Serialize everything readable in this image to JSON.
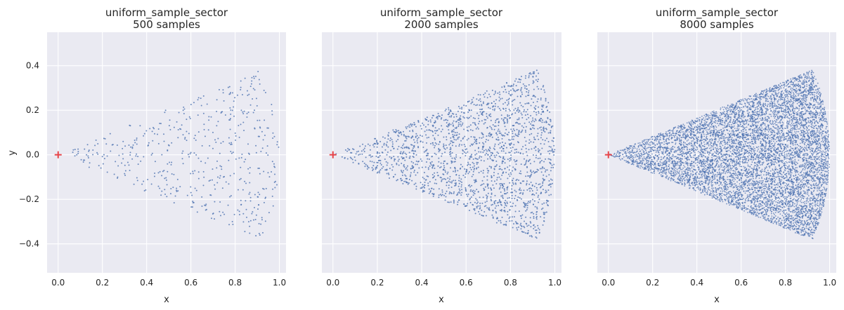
{
  "chart_data": [
    {
      "type": "scatter",
      "title": "uniform_sample_sector",
      "subtitle": "500 samples",
      "xlabel": "x",
      "ylabel": "y",
      "xlim": [
        -0.05,
        1.03
      ],
      "ylim": [
        -0.53,
        0.55
      ],
      "xticks": [
        "0.0",
        "0.2",
        "0.4",
        "0.6",
        "0.8",
        "1.0"
      ],
      "yticks": [
        "−0.4",
        "−0.2",
        "0.0",
        "0.2",
        "0.4"
      ],
      "grid": true,
      "sector": {
        "radius": 1.0,
        "half_angle_deg": 22.5
      },
      "series": [
        {
          "sample_count": 500,
          "point_color": "#4c72b0"
        },
        {
          "marker": "+",
          "points": [
            [
              0.0,
              0.0
            ]
          ],
          "color": "#e8464a"
        }
      ]
    },
    {
      "type": "scatter",
      "title": "uniform_sample_sector",
      "subtitle": "2000 samples",
      "xlabel": "x",
      "ylabel": "",
      "xlim": [
        -0.05,
        1.03
      ],
      "ylim": [
        -0.53,
        0.55
      ],
      "xticks": [
        "0.0",
        "0.2",
        "0.4",
        "0.6",
        "0.8",
        "1.0"
      ],
      "yticks": [],
      "grid": true,
      "sector": {
        "radius": 1.0,
        "half_angle_deg": 22.5
      },
      "series": [
        {
          "sample_count": 2000,
          "point_color": "#4c72b0"
        },
        {
          "marker": "+",
          "points": [
            [
              0.0,
              0.0
            ]
          ],
          "color": "#e8464a"
        }
      ]
    },
    {
      "type": "scatter",
      "title": "uniform_sample_sector",
      "subtitle": "8000 samples",
      "xlabel": "x",
      "ylabel": "",
      "xlim": [
        -0.05,
        1.03
      ],
      "ylim": [
        -0.53,
        0.55
      ],
      "xticks": [
        "0.0",
        "0.2",
        "0.4",
        "0.6",
        "0.8",
        "1.0"
      ],
      "yticks": [],
      "grid": true,
      "sector": {
        "radius": 1.0,
        "half_angle_deg": 22.5
      },
      "series": [
        {
          "sample_count": 8000,
          "point_color": "#4c72b0"
        },
        {
          "marker": "+",
          "points": [
            [
              0.0,
              0.0
            ]
          ],
          "color": "#e8464a"
        }
      ]
    }
  ]
}
